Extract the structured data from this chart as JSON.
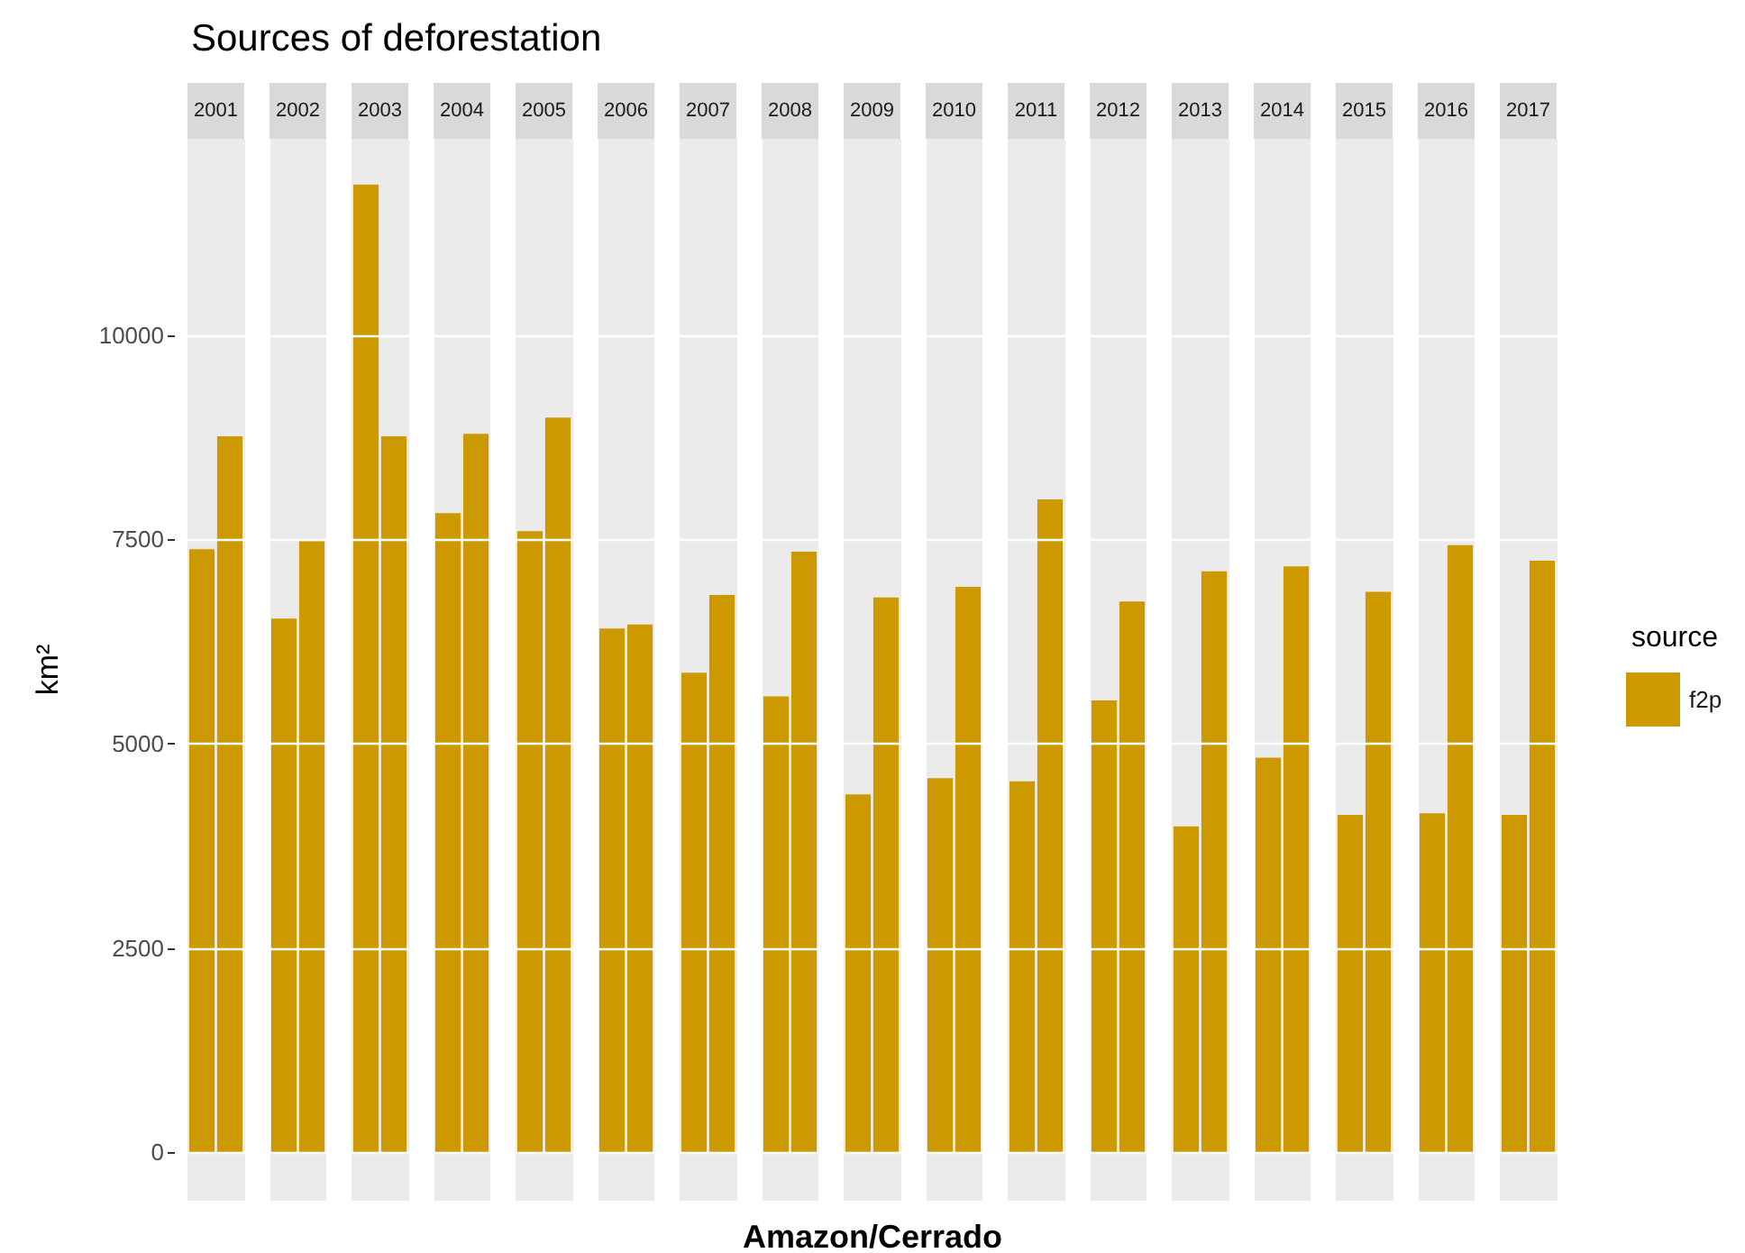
{
  "chart_data": {
    "type": "bar",
    "title": "Sources of deforestation",
    "xlabel": "Amazon/Cerrado",
    "ylabel": "km²",
    "legend_title": "source",
    "legend": "right",
    "categories": [
      "2001",
      "2002",
      "2003",
      "2004",
      "2005",
      "2006",
      "2007",
      "2008",
      "2009",
      "2010",
      "2011",
      "2012",
      "2013",
      "2014",
      "2015",
      "2016",
      "2017"
    ],
    "series": [
      {
        "name": "f2p",
        "color": "#cc9900",
        "values": [
          7380,
          6530,
          11840,
          7820,
          7600,
          6410,
          5870,
          5580,
          4380,
          4580,
          4540,
          5530,
          3990,
          4830,
          4130,
          4150,
          4130
        ]
      },
      {
        "color": "#cc9900",
        "values": [
          8760,
          7480,
          8760,
          8790,
          8990,
          6460,
          6820,
          7350,
          6790,
          6920,
          7990,
          6740,
          7110,
          7170,
          6860,
          7430,
          7240
        ]
      }
    ],
    "ylim": [
      -590,
      12400
    ],
    "yticks": [
      0,
      2500,
      5000,
      7500,
      10000
    ],
    "grid": "y"
  }
}
